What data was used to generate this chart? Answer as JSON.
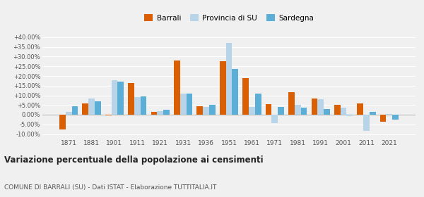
{
  "years": [
    1871,
    1881,
    1901,
    1911,
    1921,
    1931,
    1936,
    1951,
    1961,
    1971,
    1981,
    1991,
    2001,
    2011,
    2021
  ],
  "barrali": [
    -7.5,
    6.0,
    -0.5,
    16.5,
    1.5,
    28.0,
    4.5,
    27.5,
    19.0,
    5.5,
    11.5,
    8.5,
    5.0,
    6.0,
    -3.5
  ],
  "provincia_su": [
    1.5,
    8.5,
    18.0,
    9.0,
    2.0,
    11.0,
    4.0,
    37.0,
    4.0,
    -4.5,
    5.0,
    8.0,
    3.5,
    -8.5,
    0.5
  ],
  "sardegna": [
    4.5,
    7.0,
    17.0,
    9.5,
    2.5,
    11.0,
    5.0,
    23.5,
    11.0,
    4.0,
    3.5,
    3.0,
    -0.5,
    1.5,
    -2.5
  ],
  "color_barrali": "#d95f02",
  "color_provincia": "#b8d4e8",
  "color_sardegna": "#5bafd6",
  "title": "Variazione percentuale della popolazione ai censimenti",
  "subtitle": "COMUNE DI BARRALI (SU) - Dati ISTAT - Elaborazione TUTTITALIA.IT",
  "legend_labels": [
    "Barrali",
    "Provincia di SU",
    "Sardegna"
  ],
  "yticks": [
    -10,
    -5,
    0,
    5,
    10,
    15,
    20,
    25,
    30,
    35,
    40
  ],
  "ylim": [
    -12,
    44
  ],
  "bg_color": "#f0f0f0"
}
